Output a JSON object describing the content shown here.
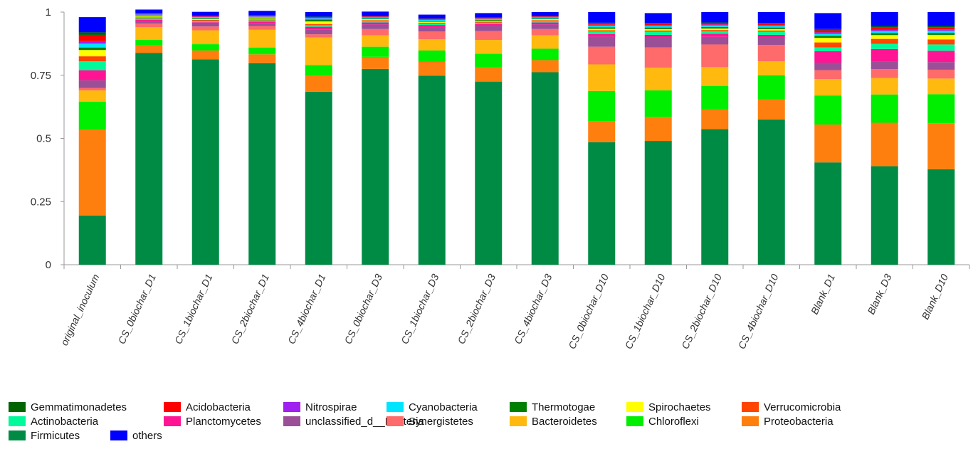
{
  "chart_data": {
    "type": "bar",
    "stacked": true,
    "title": "",
    "xlabel": "",
    "ylabel": "",
    "ylim": [
      0,
      1
    ],
    "yticks": [
      {
        "value": 0,
        "label": "0"
      },
      {
        "value": 0.25,
        "label": "0.25"
      },
      {
        "value": 0.5,
        "label": "0.5"
      },
      {
        "value": 0.75,
        "label": "0.75"
      },
      {
        "value": 1,
        "label": "1"
      }
    ],
    "categories": [
      "original_inoculum",
      "CS_0biochar_D1",
      "CS_1biochar_D1",
      "CS_2biochar_D1",
      "CS_4biochar_D1",
      "CS_0biochar_D3",
      "CS_1biochar_D3",
      "CS_2biochar_D3",
      "CS_4biochar_D3",
      "CS_0biochar_D10",
      "CS_1biochar_D10",
      "CS_2biochar_D10",
      "CS_4biochar_D10",
      "Blank_D1",
      "Blank_D3",
      "Blank_D10"
    ],
    "series": [
      {
        "name": "Firmicutes",
        "color": "#008B45",
        "values": [
          0.195,
          0.838,
          0.813,
          0.798,
          0.685,
          0.775,
          0.748,
          0.725,
          0.762,
          0.485,
          0.49,
          0.537,
          0.575,
          0.405,
          0.39,
          0.378
        ]
      },
      {
        "name": "Proteobacteria",
        "color": "#FF7F0E",
        "values": [
          0.34,
          0.03,
          0.035,
          0.035,
          0.062,
          0.048,
          0.055,
          0.058,
          0.048,
          0.083,
          0.095,
          0.08,
          0.08,
          0.15,
          0.172,
          0.182
        ]
      },
      {
        "name": "Chloroflexi",
        "color": "#00EE00",
        "values": [
          0.11,
          0.022,
          0.025,
          0.027,
          0.043,
          0.04,
          0.045,
          0.052,
          0.045,
          0.12,
          0.105,
          0.09,
          0.095,
          0.115,
          0.112,
          0.115
        ]
      },
      {
        "name": "Bacteroidetes",
        "color": "#FFB90F",
        "values": [
          0.045,
          0.05,
          0.055,
          0.07,
          0.11,
          0.045,
          0.045,
          0.055,
          0.053,
          0.105,
          0.09,
          0.075,
          0.055,
          0.065,
          0.065,
          0.062
        ]
      },
      {
        "name": "Synergistetes",
        "color": "#FF6A6A",
        "values": [
          0.01,
          0.015,
          0.015,
          0.015,
          0.012,
          0.025,
          0.03,
          0.035,
          0.025,
          0.07,
          0.08,
          0.09,
          0.065,
          0.035,
          0.035,
          0.035
        ]
      },
      {
        "name": "unclassified_d__Bacteria",
        "color": "#9B4F96",
        "values": [
          0.03,
          0.01,
          0.012,
          0.012,
          0.02,
          0.018,
          0.018,
          0.02,
          0.018,
          0.04,
          0.04,
          0.03,
          0.03,
          0.03,
          0.03,
          0.03
        ]
      },
      {
        "name": "Planctomycetes",
        "color": "#FF1493",
        "values": [
          0.04,
          0.005,
          0.005,
          0.005,
          0.01,
          0.008,
          0.008,
          0.008,
          0.008,
          0.01,
          0.01,
          0.012,
          0.01,
          0.045,
          0.05,
          0.045
        ]
      },
      {
        "name": "Actinobacteria",
        "color": "#00FA9A",
        "values": [
          0.035,
          0.005,
          0.005,
          0.005,
          0.006,
          0.005,
          0.005,
          0.005,
          0.005,
          0.01,
          0.012,
          0.01,
          0.012,
          0.015,
          0.02,
          0.025
        ]
      },
      {
        "name": "Verrucomicrobia",
        "color": "#FF4500",
        "values": [
          0.02,
          0.004,
          0.004,
          0.004,
          0.005,
          0.004,
          0.004,
          0.004,
          0.004,
          0.005,
          0.005,
          0.005,
          0.005,
          0.02,
          0.02,
          0.02
        ]
      },
      {
        "name": "Spirochaetes",
        "color": "#FFFF00",
        "values": [
          0.025,
          0.004,
          0.004,
          0.004,
          0.01,
          0.004,
          0.004,
          0.004,
          0.004,
          0.006,
          0.006,
          0.006,
          0.006,
          0.018,
          0.015,
          0.018
        ]
      },
      {
        "name": "Thermotogae",
        "color": "#008000",
        "values": [
          0.01,
          0.003,
          0.003,
          0.003,
          0.008,
          0.003,
          0.003,
          0.003,
          0.003,
          0.006,
          0.006,
          0.006,
          0.006,
          0.008,
          0.008,
          0.008
        ]
      },
      {
        "name": "Cyanobacteria",
        "color": "#00E5FF",
        "values": [
          0.015,
          0.004,
          0.004,
          0.004,
          0.004,
          0.004,
          0.004,
          0.004,
          0.004,
          0.006,
          0.006,
          0.006,
          0.006,
          0.008,
          0.008,
          0.008
        ]
      },
      {
        "name": "Nitrospirae",
        "color": "#A020F0",
        "values": [
          0.01,
          0.002,
          0.002,
          0.002,
          0.002,
          0.002,
          0.002,
          0.002,
          0.002,
          0.004,
          0.004,
          0.004,
          0.004,
          0.006,
          0.006,
          0.006
        ]
      },
      {
        "name": "Acidobacteria",
        "color": "#FF0000",
        "values": [
          0.025,
          0.002,
          0.002,
          0.002,
          0.003,
          0.002,
          0.002,
          0.002,
          0.002,
          0.004,
          0.004,
          0.004,
          0.004,
          0.008,
          0.008,
          0.008
        ]
      },
      {
        "name": "Gemmatimonadetes",
        "color": "#006400",
        "values": [
          0.01,
          0.001,
          0.001,
          0.001,
          0.002,
          0.001,
          0.001,
          0.001,
          0.001,
          0.004,
          0.004,
          0.004,
          0.004,
          0.005,
          0.005,
          0.005
        ]
      },
      {
        "name": "others",
        "color": "#0000FF",
        "values": [
          0.06,
          0.015,
          0.016,
          0.018,
          0.018,
          0.018,
          0.016,
          0.018,
          0.016,
          0.042,
          0.039,
          0.041,
          0.043,
          0.063,
          0.056,
          0.055
        ]
      }
    ],
    "legend": {
      "position": "bottom-left",
      "rows": [
        [
          "Gemmatimonadetes",
          "Acidobacteria",
          "Nitrospirae",
          "Cyanobacteria",
          "Thermotogae",
          "Spirochaetes",
          "Verrucomicrobia"
        ],
        [
          "Actinobacteria",
          "Planctomycetes",
          "unclassified_d__Bacteria",
          "Synergistetes",
          "Bacteroidetes",
          "Chloroflexi",
          "Proteobacteria"
        ],
        [
          "Firmicutes",
          "others"
        ]
      ]
    }
  }
}
